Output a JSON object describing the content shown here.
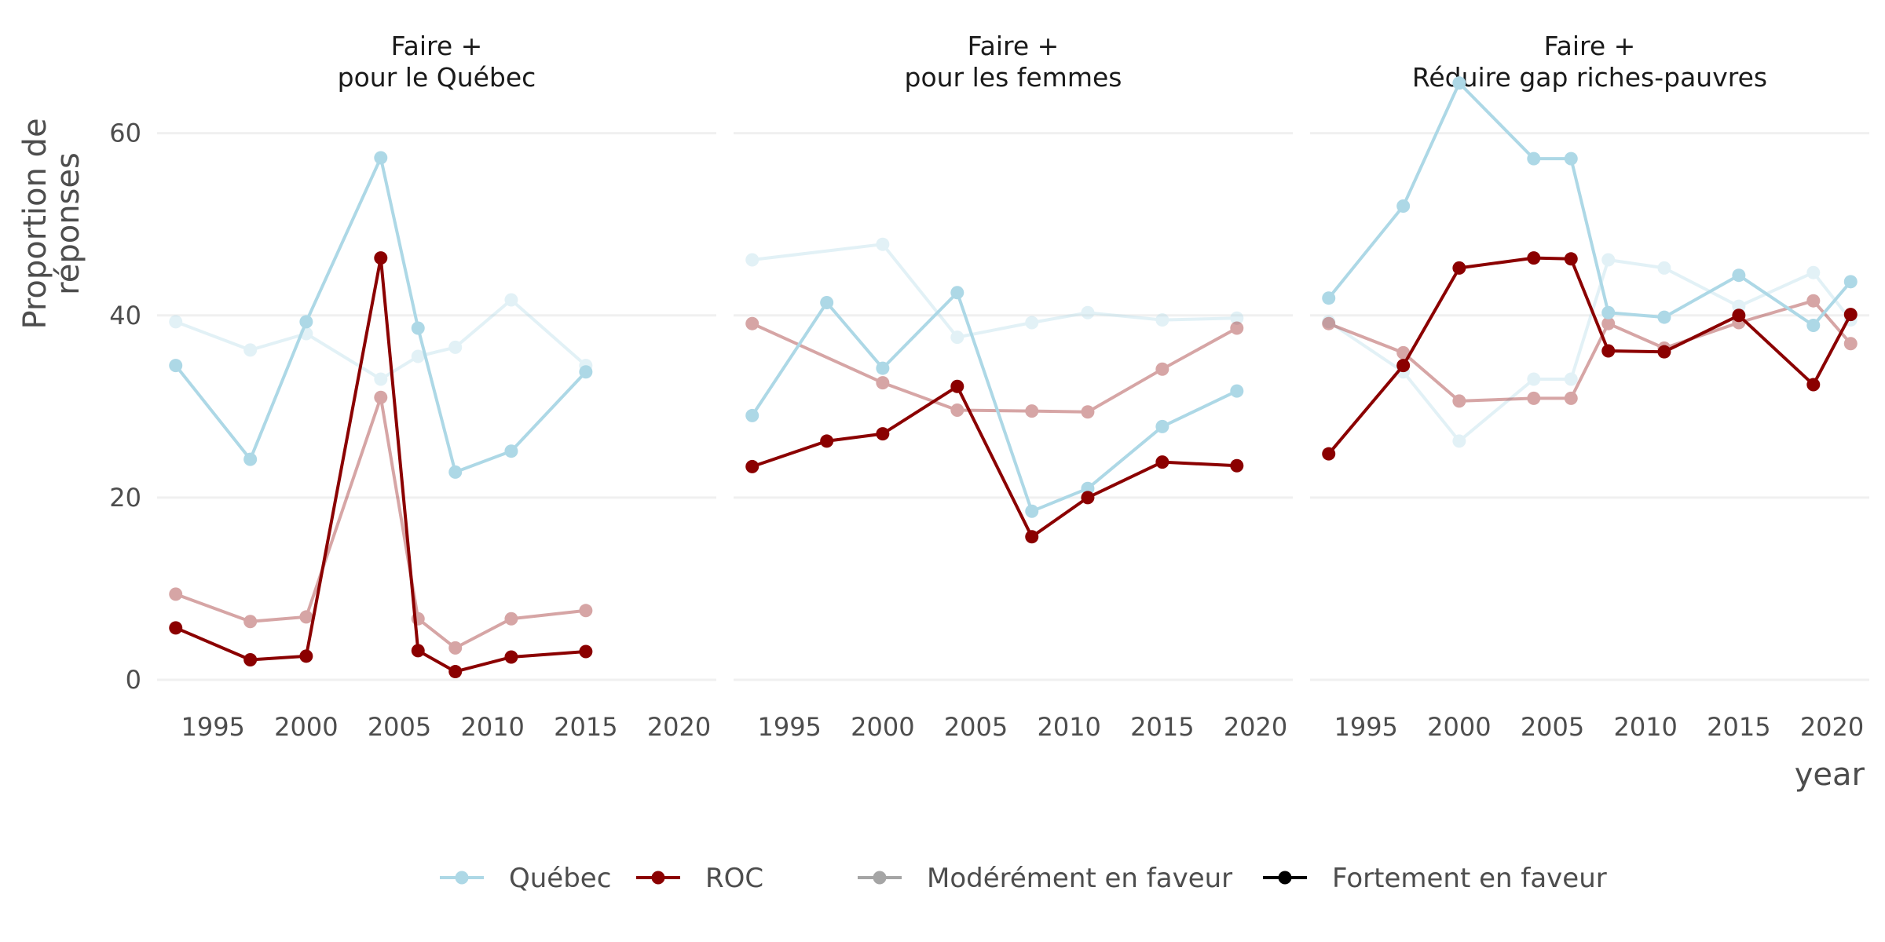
{
  "chart_data": {
    "type": "line",
    "ylabel": "Proportion de réponses",
    "ylabel_lines": [
      "Proportion de",
      "réponses"
    ],
    "xlabel": "year",
    "xlim": [
      1992,
      2022
    ],
    "ylim": [
      0,
      66
    ],
    "x_ticks": [
      1995,
      2000,
      2005,
      2010,
      2015,
      2020
    ],
    "y_ticks": [
      0,
      20,
      40,
      60
    ],
    "grid": true,
    "legend_position": "bottom",
    "colors": {
      "Québec": "#add8e6",
      "ROC": "#8b0000"
    },
    "legend": {
      "region": [
        {
          "label": "Québec",
          "color": "#add8e6"
        },
        {
          "label": "ROC",
          "color": "#8b0000"
        }
      ],
      "intensity": [
        {
          "label": "Modérément en faveur",
          "opacity": 0.35
        },
        {
          "label": "Fortement en faveur",
          "opacity": 1
        }
      ]
    },
    "facets": [
      {
        "title_lines": [
          "Faire +",
          "pour le Québec"
        ],
        "series": [
          {
            "region": "Québec",
            "intensity": "Modérément en faveur",
            "x": [
              1993,
              1997,
              2000,
              2004,
              2006,
              2008,
              2011,
              2015
            ],
            "y": [
              39.3,
              36.2,
              38.0,
              33.0,
              35.5,
              36.5,
              41.7,
              34.5
            ]
          },
          {
            "region": "Québec",
            "intensity": "Fortement en faveur",
            "x": [
              1993,
              1997,
              2000,
              2004,
              2006,
              2008,
              2011,
              2015
            ],
            "y": [
              34.5,
              24.2,
              39.3,
              57.3,
              38.6,
              22.8,
              25.1,
              33.8
            ]
          },
          {
            "region": "ROC",
            "intensity": "Modérément en faveur",
            "x": [
              1993,
              1997,
              2000,
              2004,
              2006,
              2008,
              2011,
              2015
            ],
            "y": [
              9.4,
              6.4,
              6.9,
              31.0,
              6.7,
              3.5,
              6.7,
              7.6
            ]
          },
          {
            "region": "ROC",
            "intensity": "Fortement en faveur",
            "x": [
              1993,
              1997,
              2000,
              2004,
              2006,
              2008,
              2011,
              2015
            ],
            "y": [
              5.7,
              2.2,
              2.6,
              46.3,
              3.2,
              0.9,
              2.5,
              3.1
            ]
          }
        ]
      },
      {
        "title_lines": [
          "Faire +",
          "pour les femmes"
        ],
        "series": [
          {
            "region": "Québec",
            "intensity": "Modérément en faveur",
            "x": [
              1993,
              2000,
              2004,
              2008,
              2011,
              2015,
              2019
            ],
            "y": [
              46.1,
              47.8,
              37.6,
              39.2,
              40.3,
              39.5,
              39.7
            ]
          },
          {
            "region": "Québec",
            "intensity": "Fortement en faveur",
            "x": [
              1993,
              1997,
              2000,
              2004,
              2008,
              2011,
              2015,
              2019
            ],
            "y": [
              29.0,
              41.4,
              34.2,
              42.5,
              18.5,
              21.0,
              27.8,
              31.7
            ]
          },
          {
            "region": "ROC",
            "intensity": "Modérément en faveur",
            "x": [
              1993,
              2000,
              2004,
              2008,
              2011,
              2015,
              2019
            ],
            "y": [
              39.1,
              32.6,
              29.6,
              29.5,
              29.4,
              34.1,
              38.6
            ]
          },
          {
            "region": "ROC",
            "intensity": "Fortement en faveur",
            "x": [
              1993,
              1997,
              2000,
              2004,
              2008,
              2011,
              2015,
              2019
            ],
            "y": [
              23.4,
              26.2,
              27.0,
              32.2,
              15.7,
              20.0,
              23.9,
              23.5
            ]
          }
        ]
      },
      {
        "title_lines": [
          "Faire +",
          "Réduire gap riches-pauvres"
        ],
        "series": [
          {
            "region": "Québec",
            "intensity": "Modérément en faveur",
            "x": [
              1993,
              1997,
              2000,
              2004,
              2006,
              2008,
              2011,
              2015,
              2019,
              2021
            ],
            "y": [
              39.3,
              33.8,
              26.2,
              33.0,
              33.0,
              46.1,
              45.2,
              41.0,
              44.7,
              39.5
            ]
          },
          {
            "region": "Québec",
            "intensity": "Fortement en faveur",
            "x": [
              1993,
              1997,
              2000,
              2004,
              2006,
              2008,
              2011,
              2015,
              2019,
              2021
            ],
            "y": [
              41.9,
              52.0,
              65.5,
              57.2,
              57.2,
              40.3,
              39.8,
              44.4,
              38.9,
              43.7
            ]
          },
          {
            "region": "ROC",
            "intensity": "Modérément en faveur",
            "x": [
              1993,
              1997,
              2000,
              2004,
              2006,
              2008,
              2011,
              2015,
              2019,
              2021
            ],
            "y": [
              39.1,
              35.9,
              30.6,
              30.9,
              30.9,
              39.1,
              36.4,
              39.2,
              41.6,
              36.9
            ]
          },
          {
            "region": "ROC",
            "intensity": "Fortement en faveur",
            "x": [
              1993,
              1997,
              2000,
              2004,
              2006,
              2008,
              2011,
              2015,
              2019,
              2021
            ],
            "y": [
              24.8,
              34.5,
              45.2,
              46.3,
              46.2,
              36.1,
              36.0,
              40.0,
              32.4,
              40.1
            ]
          }
        ]
      }
    ]
  }
}
